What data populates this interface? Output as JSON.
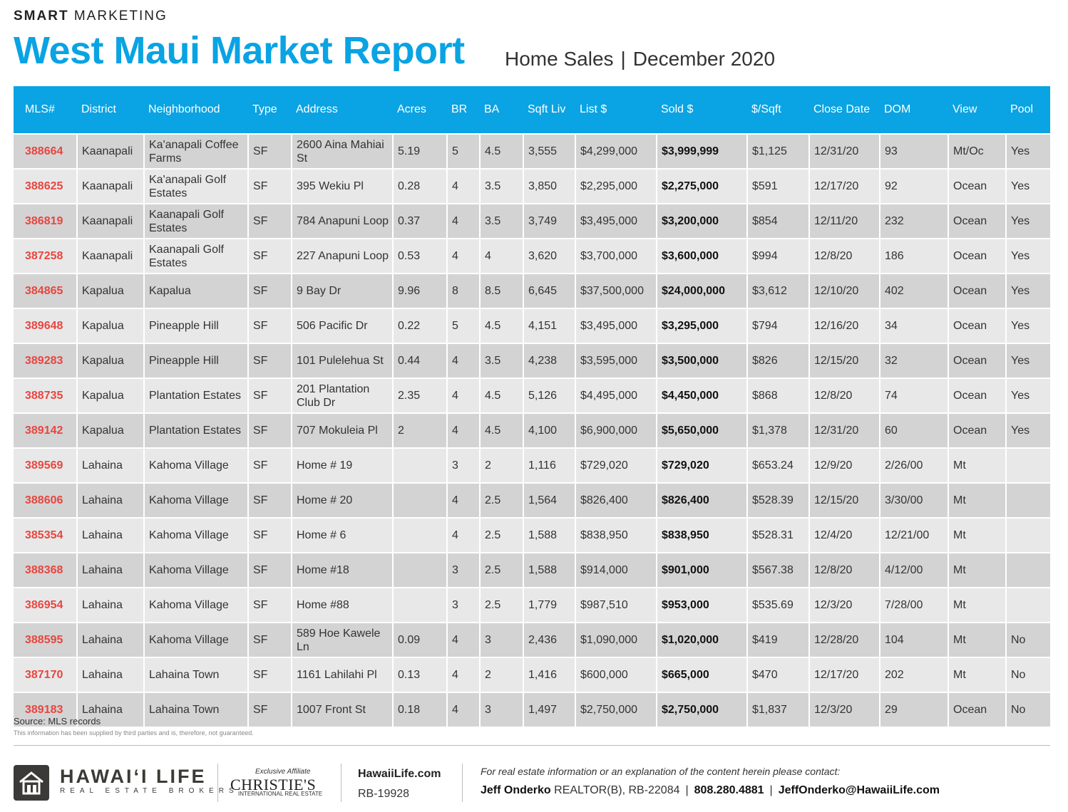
{
  "header": {
    "brand_bold": "SMART",
    "brand_rest": "MARKETING",
    "title": "West Maui Market Report",
    "subtitle_left": "Home Sales",
    "subtitle_sep": "|",
    "subtitle_right": "December 2020"
  },
  "table": {
    "columns": [
      "MLS#",
      "District",
      "Neighborhood",
      "Type",
      "Address",
      "Acres",
      "BR",
      "BA",
      "Sqft Liv",
      "List $",
      "Sold $",
      "$/Sqft",
      "Close Date",
      "DOM",
      "View",
      "Pool"
    ],
    "rows": [
      [
        "388664",
        "Kaanapali",
        "Ka'anapali Coffee Farms",
        "SF",
        "2600 Aina Mahiai St",
        "5.19",
        "5",
        "4.5",
        "3,555",
        "$4,299,000",
        "$3,999,999",
        "$1,125",
        "12/31/20",
        "93",
        "Mt/Oc",
        "Yes"
      ],
      [
        "388625",
        "Kaanapali",
        "Ka'anapali Golf Estates",
        "SF",
        "395 Wekiu Pl",
        "0.28",
        "4",
        "3.5",
        "3,850",
        "$2,295,000",
        "$2,275,000",
        "$591",
        "12/17/20",
        "92",
        "Ocean",
        "Yes"
      ],
      [
        "386819",
        "Kaanapali",
        "Kaanapali Golf Estates",
        "SF",
        "784 Anapuni Loop",
        "0.37",
        "4",
        "3.5",
        "3,749",
        "$3,495,000",
        "$3,200,000",
        "$854",
        "12/11/20",
        "232",
        "Ocean",
        "Yes"
      ],
      [
        "387258",
        "Kaanapali",
        "Kaanapali Golf Estates",
        "SF",
        "227 Anapuni Loop",
        "0.53",
        "4",
        "4",
        "3,620",
        "$3,700,000",
        "$3,600,000",
        "$994",
        "12/8/20",
        "186",
        "Ocean",
        "Yes"
      ],
      [
        "384865",
        "Kapalua",
        "Kapalua",
        "SF",
        "9 Bay Dr",
        "9.96",
        "8",
        "8.5",
        "6,645",
        "$37,500,000",
        "$24,000,000",
        "$3,612",
        "12/10/20",
        "402",
        "Ocean",
        "Yes"
      ],
      [
        "389648",
        "Kapalua",
        "Pineapple Hill",
        "SF",
        "506 Pacific Dr",
        "0.22",
        "5",
        "4.5",
        "4,151",
        "$3,495,000",
        "$3,295,000",
        "$794",
        "12/16/20",
        "34",
        "Ocean",
        "Yes"
      ],
      [
        "389283",
        "Kapalua",
        "Pineapple Hill",
        "SF",
        "101 Pulelehua St",
        "0.44",
        "4",
        "3.5",
        "4,238",
        "$3,595,000",
        "$3,500,000",
        "$826",
        "12/15/20",
        "32",
        "Ocean",
        "Yes"
      ],
      [
        "388735",
        "Kapalua",
        "Plantation Estates",
        "SF",
        "201 Plantation Club Dr",
        "2.35",
        "4",
        "4.5",
        "5,126",
        "$4,495,000",
        "$4,450,000",
        "$868",
        "12/8/20",
        "74",
        "Ocean",
        "Yes"
      ],
      [
        "389142",
        "Kapalua",
        "Plantation Estates",
        "SF",
        "707 Mokuleia Pl",
        "2",
        "4",
        "4.5",
        "4,100",
        "$6,900,000",
        "$5,650,000",
        "$1,378",
        "12/31/20",
        "60",
        "Ocean",
        "Yes"
      ],
      [
        "389569",
        "Lahaina",
        "Kahoma Village",
        "SF",
        "Home # 19",
        "",
        "3",
        "2",
        "1,116",
        "$729,020",
        "$729,020",
        "$653.24",
        "12/9/20",
        "2/26/00",
        "Mt",
        ""
      ],
      [
        "388606",
        "Lahaina",
        "Kahoma Village",
        "SF",
        "Home # 20",
        "",
        "4",
        "2.5",
        "1,564",
        "$826,400",
        "$826,400",
        "$528.39",
        "12/15/20",
        "3/30/00",
        "Mt",
        ""
      ],
      [
        "385354",
        "Lahaina",
        "Kahoma Village",
        "SF",
        "Home # 6",
        "",
        "4",
        "2.5",
        "1,588",
        "$838,950",
        "$838,950",
        "$528.31",
        "12/4/20",
        "12/21/00",
        "Mt",
        ""
      ],
      [
        "388368",
        "Lahaina",
        "Kahoma Village",
        "SF",
        "Home #18",
        "",
        "3",
        "2.5",
        "1,588",
        "$914,000",
        "$901,000",
        "$567.38",
        "12/8/20",
        "4/12/00",
        "Mt",
        ""
      ],
      [
        "386954",
        "Lahaina",
        "Kahoma Village",
        "SF",
        "Home #88",
        "",
        "3",
        "2.5",
        "1,779",
        "$987,510",
        "$953,000",
        "$535.69",
        "12/3/20",
        "7/28/00",
        "Mt",
        ""
      ],
      [
        "388595",
        "Lahaina",
        "Kahoma Village",
        "SF",
        "589 Hoe Kawele Ln",
        "0.09",
        "4",
        "3",
        "2,436",
        "$1,090,000",
        "$1,020,000",
        "$419",
        "12/28/20",
        "104",
        "Mt",
        "No"
      ],
      [
        "387170",
        "Lahaina",
        "Lahaina Town",
        "SF",
        "1161 Lahilahi Pl",
        "0.13",
        "4",
        "2",
        "1,416",
        "$600,000",
        "$665,000",
        "$470",
        "12/17/20",
        "202",
        "Mt",
        "No"
      ],
      [
        "389183",
        "Lahaina",
        "Lahaina Town",
        "SF",
        "1007 Front St",
        "0.18",
        "4",
        "3",
        "1,497",
        "$2,750,000",
        "$2,750,000",
        "$1,837",
        "12/3/20",
        "29",
        "Ocean",
        "No"
      ]
    ]
  },
  "footer": {
    "source": "Source: MLS records",
    "disclaimer": "This information has been supplied by third parties and is, therefore, not guaranteed.",
    "logo_name": "HAWAI‘I LIFE",
    "logo_tagline": "REAL ESTATE BROKERS",
    "affiliate_top": "Exclusive Affiliate",
    "affiliate_name": "CHRISTIE'S",
    "affiliate_sub": "INTERNATIONAL REAL ESTATE",
    "website": "HawaiiLife.com",
    "license": "RB-19928",
    "contact_note": "For real estate information or an explanation of the content herein please contact:",
    "agent_name": "Jeff Onderko",
    "agent_title": "REALTOR(B), RB-22084",
    "sep": "|",
    "phone": "808.280.4881",
    "email": "JeffOnderko@HawaiiLife.com"
  },
  "colors": {
    "accent": "#0aa3e3",
    "mls_red": "#e8463f",
    "row_dark": "#d3d3d4",
    "row_light": "#e8e8e9",
    "logo_brown": "#3b3a36"
  },
  "icons": {
    "logo": "house-icon"
  }
}
